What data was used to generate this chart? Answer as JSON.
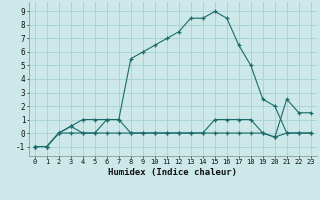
{
  "xlabel": "Humidex (Indice chaleur)",
  "bg_color": "#cce8e8",
  "grid_color": "#aad4d4",
  "line_color": "#1a6b6b",
  "xlim": [
    -0.5,
    23.5
  ],
  "ylim": [
    -1.7,
    9.7
  ],
  "xticks": [
    0,
    1,
    2,
    3,
    4,
    5,
    6,
    7,
    8,
    9,
    10,
    11,
    12,
    13,
    14,
    15,
    16,
    17,
    18,
    19,
    20,
    21,
    22,
    23
  ],
  "yticks": [
    -1,
    0,
    1,
    2,
    3,
    4,
    5,
    6,
    7,
    8,
    9
  ],
  "line1_x": [
    0,
    1,
    2,
    3,
    4,
    5,
    6,
    7,
    8,
    9,
    10,
    11,
    12,
    13,
    14,
    15,
    16,
    17,
    18,
    19,
    20,
    21,
    22,
    23
  ],
  "line1_y": [
    -1,
    -1,
    0,
    0.5,
    1,
    1,
    1,
    1,
    5.5,
    6,
    6.5,
    7,
    7.5,
    8.5,
    8.5,
    9,
    8.5,
    6.5,
    5,
    2.5,
    2,
    0,
    0,
    0
  ],
  "line2_x": [
    0,
    1,
    2,
    3,
    4,
    5,
    6,
    7,
    8,
    9,
    10,
    11,
    12,
    13,
    14,
    15,
    16,
    17,
    18,
    19,
    20,
    21,
    22,
    23
  ],
  "line2_y": [
    -1,
    -1,
    0,
    0.5,
    0,
    0,
    1,
    1,
    0,
    0,
    0,
    0,
    0,
    0,
    0,
    1,
    1,
    1,
    1,
    0,
    -0.3,
    2.5,
    1.5,
    1.5
  ],
  "line3_x": [
    0,
    1,
    2,
    3,
    4,
    5,
    6,
    7,
    8,
    9,
    10,
    11,
    12,
    13,
    14,
    15,
    16,
    17,
    18,
    19,
    20,
    21,
    22,
    23
  ],
  "line3_y": [
    -1,
    -1,
    0,
    0,
    0,
    0,
    0,
    0,
    0,
    0,
    0,
    0,
    0,
    0,
    0,
    0,
    0,
    0,
    0,
    0,
    -0.3,
    0,
    0,
    0
  ]
}
